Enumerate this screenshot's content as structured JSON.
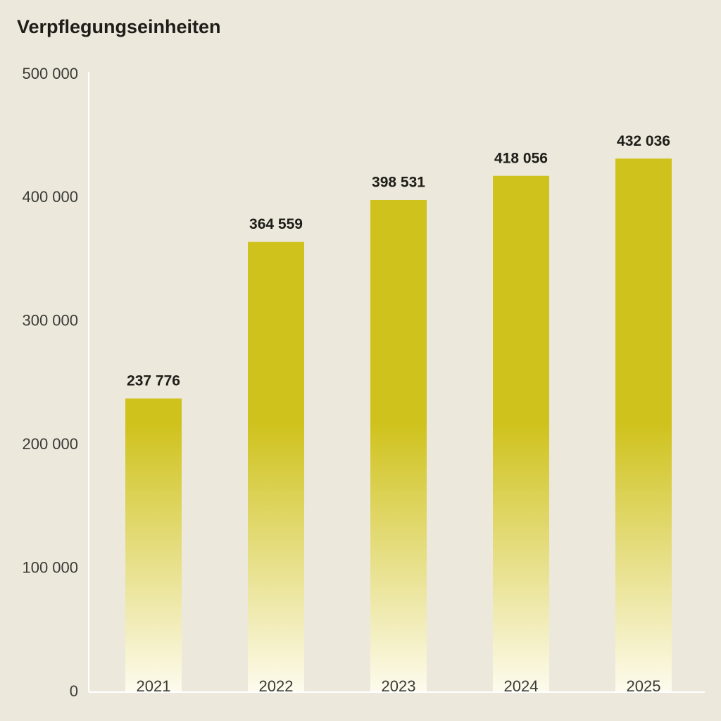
{
  "chart_data": {
    "type": "bar",
    "title": "Verpflegungseinheiten",
    "categories": [
      "2021",
      "2022",
      "2023",
      "2024",
      "2025"
    ],
    "values": [
      237776,
      364559,
      398531,
      418056,
      432036
    ],
    "value_labels": [
      "237 776",
      "364 559",
      "398 531",
      "418 056",
      "432 036"
    ],
    "color": "#cfc21c",
    "ylim": [
      0,
      500000
    ],
    "yticks": [
      0,
      {
        "value": 100000,
        "label": "100 000"
      },
      {
        "value": 200000,
        "label": "200 000"
      },
      {
        "value": 300000,
        "label": "300 000"
      },
      {
        "value": 400000,
        "label": "400 000"
      },
      {
        "value": 500000,
        "label": "500 000"
      }
    ],
    "grid": false
  }
}
